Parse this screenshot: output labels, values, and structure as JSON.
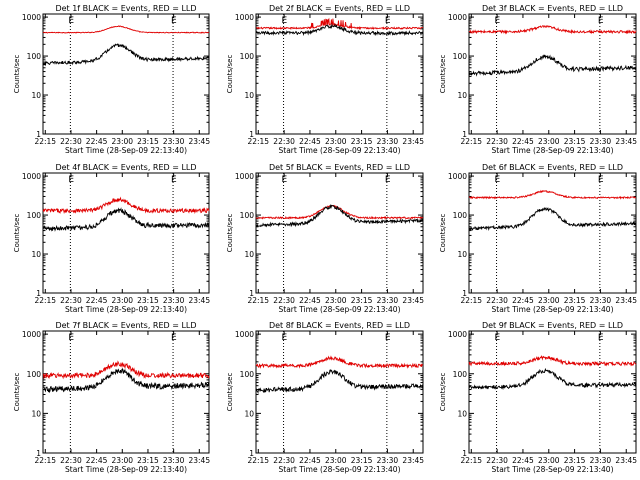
{
  "colors": {
    "events": "#000000",
    "lld": "#e00000",
    "axis": "#000000"
  },
  "common": {
    "ylabel": "Counts/sec",
    "xlabel": "Start Time (28-Sep-09 22:13:40)",
    "x_ticks": [
      "22:15",
      "22:30",
      "22:45",
      "23:00",
      "23:15",
      "23:30",
      "23:45"
    ],
    "y_ticks": [
      "1",
      "10",
      "100",
      "1000"
    ],
    "x_range_min": [
      0,
      97
    ],
    "y_log_range": [
      1,
      1200
    ],
    "marker_label": "E",
    "marker_times_min": [
      16,
      76
    ]
  },
  "chart_data": [
    {
      "type": "line",
      "title": "Det 1f BLACK = Events, RED = LLD",
      "series": [
        {
          "color": "red",
          "base": 400,
          "bump": 1.45,
          "noise": 0.01
        },
        {
          "color": "black",
          "base": 65,
          "bump": 2.5,
          "noise": 0.04,
          "slope": 0.35
        }
      ]
    },
    {
      "type": "line",
      "title": "Det 2f BLACK = Events, RED = LLD",
      "series": [
        {
          "color": "red",
          "base": 520,
          "bump": 1.25,
          "noise": 0.02,
          "spiky": true
        },
        {
          "color": "black",
          "base": 390,
          "bump": 1.5,
          "noise": 0.04
        }
      ]
    },
    {
      "type": "line",
      "title": "Det 3f BLACK = Events, RED = LLD",
      "series": [
        {
          "color": "red",
          "base": 420,
          "bump": 1.35,
          "noise": 0.03
        },
        {
          "color": "black",
          "base": 35,
          "bump": 2.3,
          "noise": 0.05,
          "slope": 0.45
        }
      ]
    },
    {
      "type": "line",
      "title": "Det 4f BLACK = Events, RED = LLD",
      "series": [
        {
          "color": "red",
          "base": 130,
          "bump": 1.9,
          "noise": 0.05
        },
        {
          "color": "black",
          "base": 45,
          "bump": 2.6,
          "noise": 0.06,
          "slope": 0.25
        }
      ]
    },
    {
      "type": "line",
      "title": "Det 5f BLACK = Events, RED = LLD",
      "series": [
        {
          "color": "red",
          "base": 85,
          "bump": 2.0,
          "noise": 0.02
        },
        {
          "color": "black",
          "base": 55,
          "bump": 2.6,
          "noise": 0.04,
          "slope": 0.3
        }
      ]
    },
    {
      "type": "line",
      "title": "Det 6f BLACK = Events, RED = LLD",
      "series": [
        {
          "color": "red",
          "base": 280,
          "bump": 1.45,
          "noise": 0.02
        },
        {
          "color": "black",
          "base": 45,
          "bump": 2.8,
          "noise": 0.04,
          "slope": 0.35
        }
      ]
    },
    {
      "type": "line",
      "title": "Det 7f BLACK = Events, RED = LLD",
      "series": [
        {
          "color": "red",
          "base": 90,
          "bump": 2.0,
          "noise": 0.06
        },
        {
          "color": "black",
          "base": 40,
          "bump": 2.6,
          "noise": 0.07,
          "slope": 0.3
        }
      ]
    },
    {
      "type": "line",
      "title": "Det 8f BLACK = Events, RED = LLD",
      "series": [
        {
          "color": "red",
          "base": 160,
          "bump": 1.55,
          "noise": 0.04
        },
        {
          "color": "black",
          "base": 38,
          "bump": 2.6,
          "noise": 0.06,
          "slope": 0.3
        }
      ]
    },
    {
      "type": "line",
      "title": "Det 9f BLACK = Events, RED = LLD",
      "series": [
        {
          "color": "red",
          "base": 180,
          "bump": 1.45,
          "noise": 0.04
        },
        {
          "color": "black",
          "base": 45,
          "bump": 2.4,
          "noise": 0.05,
          "slope": 0.2
        }
      ]
    }
  ]
}
